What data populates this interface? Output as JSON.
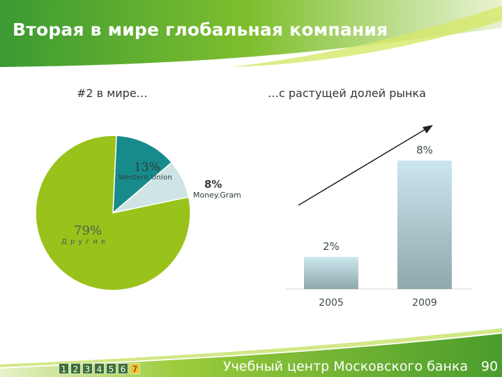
{
  "title": "Вторая в мире глобальная компания",
  "left_subtitle": "#2 в мире…",
  "right_subtitle": "…с растущей долей рынка",
  "pie": {
    "labels": {
      "western_union_pct": "13%",
      "western_union_name": "Western Union",
      "moneygram_pct": "8%",
      "moneygram_name": "Money.Gram",
      "other_pct": "79%",
      "other_name": "Другие"
    }
  },
  "colors": {
    "green": "#99c21a",
    "teal": "#178b8b",
    "light_blue": "#cfe4e4",
    "bar_top": "#c9e4ec",
    "bar_bottom": "#8aa9ad"
  },
  "chart_data": [
    {
      "type": "pie",
      "slices": [
        {
          "label": "Western Union",
          "value": 13
        },
        {
          "label": "Money.Gram",
          "value": 8
        },
        {
          "label": "Другие",
          "value": 79
        }
      ]
    },
    {
      "type": "bar",
      "categories": [
        "2005",
        "2009"
      ],
      "values": [
        2,
        8
      ],
      "data_labels": [
        "2%",
        "8%"
      ]
    }
  ],
  "footer": {
    "text": "Учебный центр Московского банка",
    "page_number": "90",
    "nav_pages": [
      "1",
      "2",
      "3",
      "4",
      "5",
      "6",
      "7"
    ],
    "active_page": "7"
  }
}
